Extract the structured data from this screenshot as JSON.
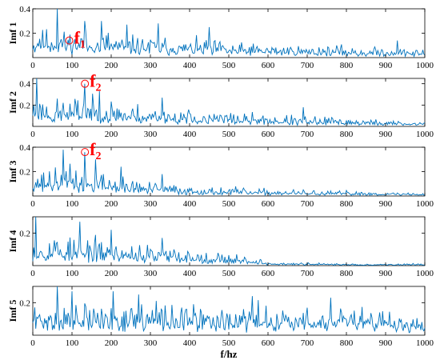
{
  "chart_data": {
    "type": "line",
    "xlabel": "f/hz",
    "xlim": [
      0,
      1000
    ],
    "xticks": [
      0,
      100,
      200,
      300,
      400,
      500,
      600,
      700,
      800,
      900,
      1000
    ],
    "line_color": "#0072bd",
    "annotation_color": "#ff0000",
    "grid": false,
    "panels": [
      {
        "ylabel": "Imf 1",
        "ylim": [
          0,
          0.4
        ],
        "yticks": [
          0.2,
          0.4
        ],
        "annotation": {
          "base": "f",
          "sub": "1",
          "x": 93,
          "y": 0.14
        },
        "envelope": [
          [
            0,
            0.22
          ],
          [
            100,
            0.2
          ],
          [
            200,
            0.17
          ],
          [
            300,
            0.15
          ],
          [
            400,
            0.13
          ],
          [
            500,
            0.11
          ],
          [
            600,
            0.1
          ],
          [
            700,
            0.09
          ],
          [
            800,
            0.08
          ],
          [
            900,
            0.07
          ],
          [
            1000,
            0.06
          ]
        ],
        "peaks": [
          [
            62,
            0.4
          ],
          [
            132,
            0.3
          ],
          [
            175,
            0.3
          ],
          [
            240,
            0.27
          ],
          [
            320,
            0.28
          ],
          [
            450,
            0.25
          ],
          [
            930,
            0.14
          ]
        ],
        "seed": 11
      },
      {
        "ylabel": "Imf 2",
        "ylim": [
          0,
          0.45
        ],
        "yticks": [
          0.2,
          0.4
        ],
        "annotation": {
          "base": "f",
          "sub": "2",
          "x": 133,
          "y": 0.4
        },
        "envelope": [
          [
            0,
            0.26
          ],
          [
            100,
            0.23
          ],
          [
            200,
            0.2
          ],
          [
            300,
            0.16
          ],
          [
            400,
            0.13
          ],
          [
            500,
            0.12
          ],
          [
            600,
            0.1
          ],
          [
            700,
            0.08
          ],
          [
            800,
            0.07
          ],
          [
            900,
            0.05
          ],
          [
            1000,
            0.04
          ]
        ],
        "peaks": [
          [
            10,
            0.45
          ],
          [
            133,
            0.4
          ],
          [
            170,
            0.33
          ],
          [
            330,
            0.27
          ],
          [
            690,
            0.18
          ]
        ],
        "seed": 23
      },
      {
        "ylabel": "Imf 3",
        "ylim": [
          0,
          0.4
        ],
        "yticks": [
          0.2,
          0.4
        ],
        "annotation": {
          "base": "f",
          "sub": "2",
          "x": 133,
          "y": 0.36
        },
        "envelope": [
          [
            0,
            0.2
          ],
          [
            100,
            0.2
          ],
          [
            200,
            0.15
          ],
          [
            300,
            0.1
          ],
          [
            400,
            0.07
          ],
          [
            500,
            0.06
          ],
          [
            600,
            0.05
          ],
          [
            700,
            0.04
          ],
          [
            800,
            0.035
          ],
          [
            900,
            0.03
          ],
          [
            1000,
            0.025
          ]
        ],
        "peaks": [
          [
            78,
            0.38
          ],
          [
            133,
            0.36
          ],
          [
            160,
            0.3
          ],
          [
            225,
            0.24
          ],
          [
            330,
            0.18
          ]
        ],
        "seed": 37
      },
      {
        "ylabel": "Imf 4",
        "ylim": [
          0,
          0.3
        ],
        "yticks": [
          0.2
        ],
        "annotation": null,
        "envelope": [
          [
            0,
            0.17
          ],
          [
            100,
            0.15
          ],
          [
            200,
            0.13
          ],
          [
            300,
            0.11
          ],
          [
            400,
            0.09
          ],
          [
            500,
            0.07
          ],
          [
            560,
            0.05
          ],
          [
            600,
            0.02
          ],
          [
            700,
            0.015
          ],
          [
            800,
            0.012
          ],
          [
            900,
            0.01
          ],
          [
            1000,
            0.01
          ]
        ],
        "peaks": [
          [
            8,
            0.3
          ],
          [
            120,
            0.27
          ],
          [
            200,
            0.22
          ],
          [
            330,
            0.17
          ]
        ],
        "seed": 53
      },
      {
        "ylabel": "Imf 5",
        "ylim": [
          0,
          0.3
        ],
        "yticks": [
          0.2
        ],
        "annotation": null,
        "envelope": [
          [
            0,
            0.17
          ],
          [
            200,
            0.17
          ],
          [
            400,
            0.16
          ],
          [
            600,
            0.15
          ],
          [
            800,
            0.14
          ],
          [
            1000,
            0.12
          ]
        ],
        "peaks": [
          [
            62,
            0.3
          ],
          [
            100,
            0.27
          ],
          [
            205,
            0.27
          ],
          [
            270,
            0.25
          ],
          [
            560,
            0.24
          ],
          [
            760,
            0.23
          ]
        ],
        "seed": 71
      }
    ]
  }
}
